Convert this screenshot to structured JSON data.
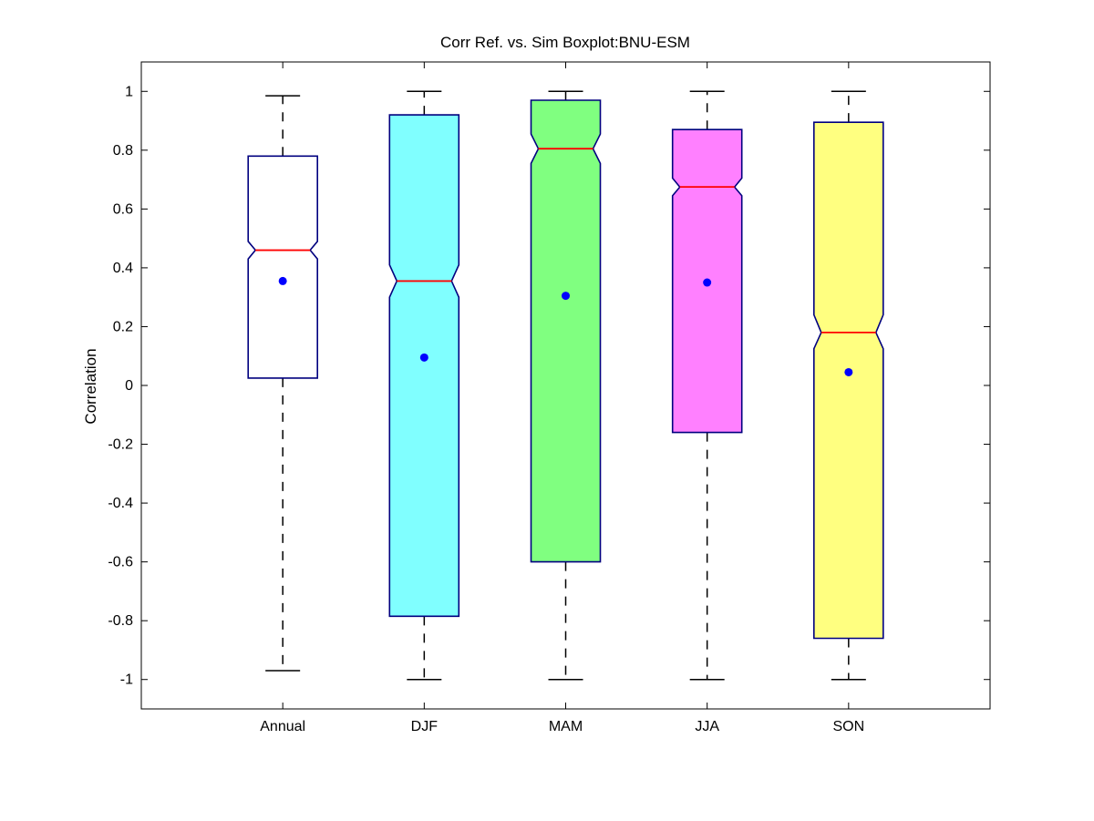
{
  "chart_data": {
    "type": "box",
    "title": "Corr Ref. vs. Sim Boxplot:BNU-ESM",
    "xlabel": "",
    "ylabel": "Correlation",
    "ylim": [
      -1.1,
      1.1
    ],
    "yticks": [
      1,
      0.8,
      0.6,
      0.4,
      0.2,
      0,
      -0.2,
      -0.4,
      -0.6,
      -0.8,
      -1
    ],
    "ytick_labels": [
      "1",
      "0.8",
      "0.6",
      "0.4",
      "0.2",
      "0",
      "-0.2",
      "-0.4",
      "-0.6",
      "-0.8",
      "-1"
    ],
    "categories": [
      "Annual",
      "DJF",
      "MAM",
      "JJA",
      "SON"
    ],
    "notched": true,
    "grid": false,
    "boxes": [
      {
        "category": "Annual",
        "whisker_low": -0.97,
        "q1": 0.025,
        "median": 0.46,
        "q3": 0.78,
        "whisker_high": 0.985,
        "notch_low": 0.43,
        "notch_high": 0.49,
        "mean": 0.355,
        "fill": "#ffffff"
      },
      {
        "category": "DJF",
        "whisker_low": -1.0,
        "q1": -0.785,
        "median": 0.355,
        "q3": 0.92,
        "whisker_high": 1.0,
        "notch_low": 0.3,
        "notch_high": 0.41,
        "mean": 0.095,
        "fill": "#80ffff"
      },
      {
        "category": "MAM",
        "whisker_low": -1.0,
        "q1": -0.6,
        "median": 0.805,
        "q3": 0.97,
        "whisker_high": 1.0,
        "notch_low": 0.755,
        "notch_high": 0.855,
        "mean": 0.305,
        "fill": "#80ff80"
      },
      {
        "category": "JJA",
        "whisker_low": -1.0,
        "q1": -0.16,
        "median": 0.675,
        "q3": 0.87,
        "whisker_high": 1.0,
        "notch_low": 0.645,
        "notch_high": 0.705,
        "mean": 0.35,
        "fill": "#ff80ff"
      },
      {
        "category": "SON",
        "whisker_low": -1.0,
        "q1": -0.86,
        "median": 0.18,
        "q3": 0.895,
        "whisker_high": 1.0,
        "notch_low": 0.125,
        "notch_high": 0.24,
        "mean": 0.045,
        "fill": "#ffff80"
      }
    ],
    "colors": {
      "box_edge": "#00007f",
      "median_line": "#ff0000",
      "mean_marker": "#0000ff",
      "whisker": "#000000",
      "axes": "#000000"
    }
  }
}
